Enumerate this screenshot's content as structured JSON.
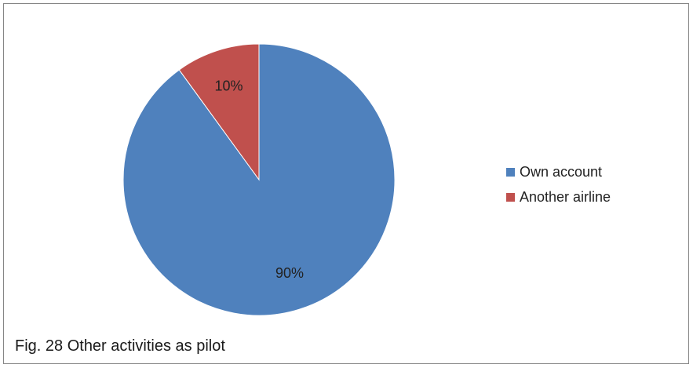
{
  "chart_data": {
    "type": "pie",
    "categories": [
      "Own account",
      "Another airline"
    ],
    "values": [
      90,
      10
    ],
    "data_labels": [
      "90%",
      "10%"
    ],
    "colors": [
      "#4f81bd",
      "#c0504d"
    ],
    "legend_placement": "right",
    "caption": "Fig. 28 Other activities as pilot"
  }
}
